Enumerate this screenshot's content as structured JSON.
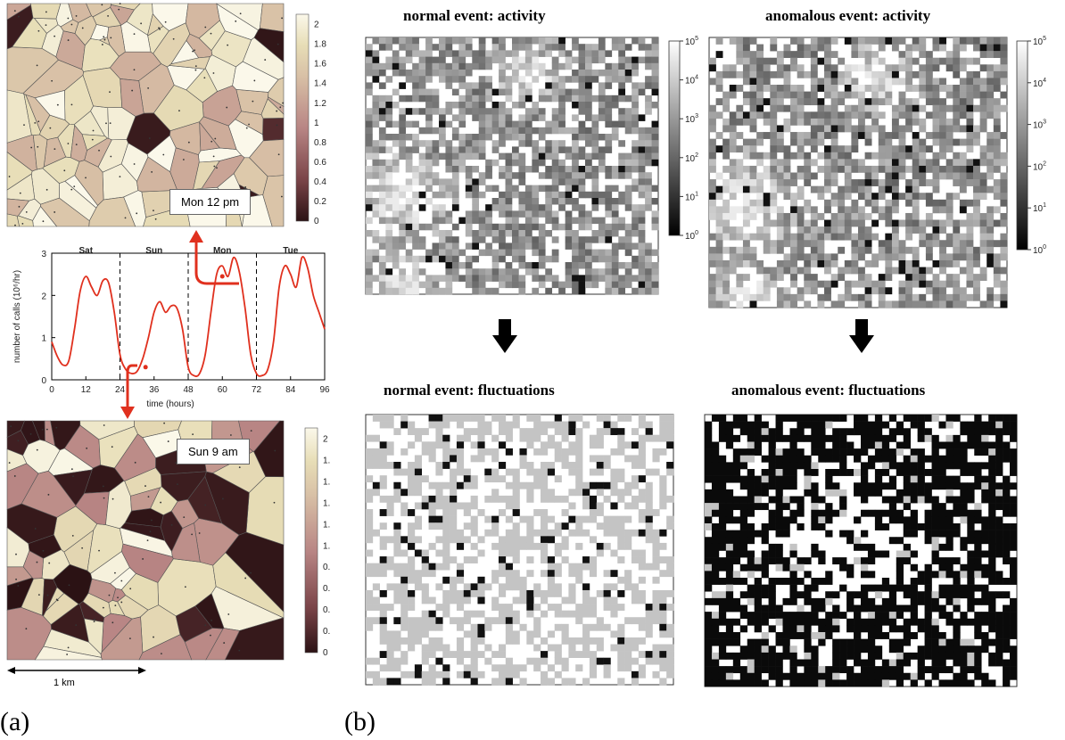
{
  "panel_labels": {
    "a": "(a)",
    "b": "(b)"
  },
  "maps": {
    "top": {
      "label": "Mon 12 pm",
      "colorbar_ticks": [
        "0",
        "0.2",
        "0.4",
        "0.6",
        "0.8",
        "1",
        "1.2",
        "1.4",
        "1.6",
        "1.8",
        "2"
      ],
      "value_range": [
        0,
        2.1
      ]
    },
    "bottom": {
      "label": "Sun 9 am",
      "colorbar_ticks": [
        "0",
        "0.",
        "0.",
        "0.",
        "0.",
        "1.",
        "1.",
        "1.",
        "1.",
        "1.",
        "2"
      ],
      "value_range": [
        0,
        2.1
      ]
    },
    "scale_bar": "1 km"
  },
  "heatmaps": {
    "activity_normal": {
      "title": "normal event: activity"
    },
    "activity_anomalous": {
      "title": "anomalous event: activity"
    },
    "fluct_normal": {
      "title": "normal event: fluctuations"
    },
    "fluct_anomalous": {
      "title": "anomalous event: fluctuations"
    },
    "log_colorbar": {
      "base": "10",
      "exponents": [
        "5",
        "4",
        "3",
        "2",
        "1",
        "0"
      ]
    }
  },
  "colors": {
    "curve": "#e0301e",
    "arrow": "#e0301e",
    "map_low": "#2b1214",
    "map_high": "#fbf8ea"
  },
  "chart_data": [
    {
      "type": "line",
      "title": "",
      "xlabel": "time (hours)",
      "ylabel": "number of calls (10⁶/hr)",
      "xlim": [
        0,
        96
      ],
      "ylim": [
        0,
        3
      ],
      "xticks": [
        "0",
        "12",
        "24",
        "36",
        "48",
        "60",
        "72",
        "84",
        "96"
      ],
      "yticks": [
        "0",
        "1",
        "2",
        "3"
      ],
      "day_labels": [
        "Sat",
        "Sun",
        "Mon",
        "Tue"
      ],
      "day_boundaries": [
        24,
        48,
        72
      ],
      "series": [
        {
          "x": [
            0,
            2,
            4,
            6,
            8,
            10,
            12,
            14,
            16,
            18,
            20,
            22,
            24,
            26,
            28,
            30,
            32,
            34,
            36,
            38,
            40,
            42,
            44,
            46,
            48,
            50,
            52,
            54,
            56,
            58,
            60,
            62,
            64,
            66,
            68,
            70,
            72,
            74,
            76,
            78,
            80,
            82,
            84,
            86,
            88,
            90,
            92,
            94,
            96
          ],
          "values": [
            0.9,
            0.55,
            0.35,
            0.45,
            1.2,
            2.1,
            2.45,
            2.2,
            2.0,
            2.35,
            2.3,
            1.6,
            0.6,
            0.25,
            0.15,
            0.2,
            0.5,
            1.0,
            1.6,
            1.85,
            1.6,
            1.75,
            1.7,
            1.2,
            0.3,
            0.1,
            0.15,
            0.6,
            1.6,
            2.5,
            2.7,
            2.45,
            2.9,
            2.55,
            1.7,
            0.6,
            0.15,
            0.1,
            0.25,
            0.9,
            2.2,
            2.7,
            2.5,
            2.2,
            2.9,
            2.65,
            2.0,
            1.6,
            1.2
          ]
        }
      ]
    }
  ]
}
